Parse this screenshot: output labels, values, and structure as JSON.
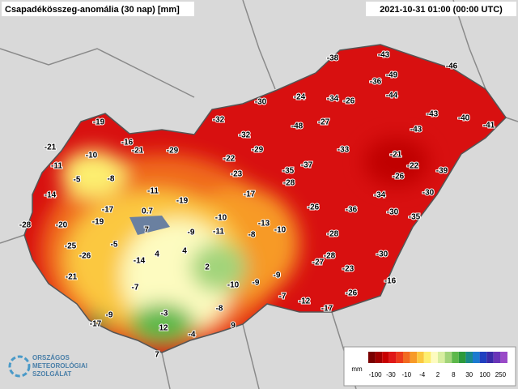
{
  "header": {
    "title": "Csapadékösszeg-anomália (30 nap) [mm]",
    "timestamp": "2021-10-31 01:00 (00:00 UTC)"
  },
  "stations": [
    -38,
    -43,
    -46,
    -36,
    -49,
    -24,
    -34,
    -26,
    -44,
    -30,
    -43,
    -40,
    -41,
    -32,
    -48,
    -27,
    -43,
    -19,
    -32,
    -16,
    -21,
    -29,
    -29,
    -33,
    -21,
    -21,
    -10,
    -22,
    -37,
    -22,
    -39,
    -11,
    -35,
    -26,
    -5,
    -8,
    -23,
    -28,
    -11,
    -17,
    -30,
    -14,
    -34,
    -19,
    -26,
    -36,
    -17,
    0.7,
    -10,
    -30,
    -35,
    -28,
    -20,
    -19,
    7,
    -9,
    -13,
    -10,
    -11,
    -8,
    -28,
    -25,
    -5,
    4,
    4,
    -26,
    -14,
    2,
    -30,
    -28,
    -27,
    -23,
    -21,
    -10,
    -9,
    -9,
    -16,
    -7,
    -26,
    -7,
    -12,
    -8,
    -17,
    -9,
    -3,
    -17,
    12,
    9,
    -4,
    7
  ],
  "legend": {
    "unit": "mm",
    "labels": [
      -100,
      -30,
      -10,
      -4,
      2,
      8,
      30,
      100,
      250
    ],
    "colors": [
      "#7a0000",
      "#a00000",
      "#c80000",
      "#e01818",
      "#ec3a1c",
      "#f26a20",
      "#f79a28",
      "#fbc840",
      "#fdee70",
      "#fdfbc0",
      "#d8eea0",
      "#a2d47a",
      "#5cb84a",
      "#2c9a3c",
      "#1a8a8a",
      "#1c7ad0",
      "#2040c0",
      "#3a2aa8",
      "#6a34b8",
      "#9a4ac8"
    ]
  },
  "logo": {
    "lines": [
      "ORSZÁGOS",
      "METEOROLÓGIAI",
      "SZOLGÁLAT"
    ]
  }
}
